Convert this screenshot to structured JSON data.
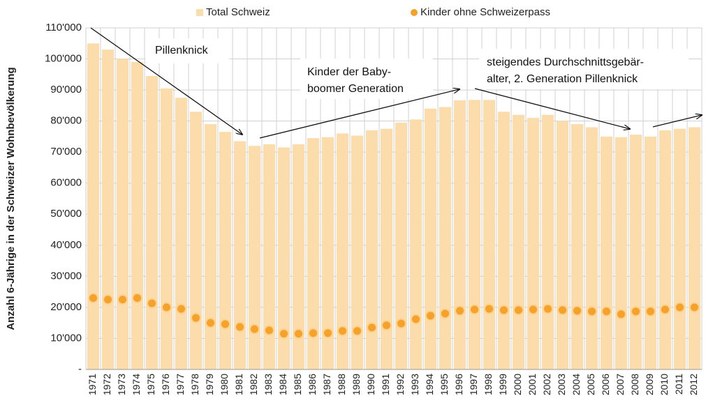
{
  "chart_data": {
    "type": "bar",
    "y_label": "Anzahl 6-Jährige in der Schweizer Wohnbevölkerung",
    "categories": [
      "1971",
      "1972",
      "1973",
      "1974",
      "1975",
      "1976",
      "1977",
      "1978",
      "1979",
      "1980",
      "1981",
      "1982",
      "1983",
      "1984",
      "1985",
      "1986",
      "1987",
      "1988",
      "1989",
      "1990",
      "1991",
      "1992",
      "1993",
      "1994",
      "1995",
      "1996",
      "1997",
      "1998",
      "1999",
      "2000",
      "2001",
      "2002",
      "2003",
      "2004",
      "2005",
      "2006",
      "2007",
      "2008",
      "2009",
      "2010",
      "2011",
      "2012"
    ],
    "series": [
      {
        "name": "Total Schweiz",
        "type": "bar",
        "color": "#fcdcab",
        "values": [
          105000,
          103000,
          100000,
          99000,
          94500,
          90500,
          87500,
          83000,
          79000,
          76500,
          73500,
          72000,
          72500,
          71500,
          72500,
          74500,
          74800,
          76000,
          75300,
          77000,
          77500,
          79500,
          80500,
          84000,
          84500,
          86700,
          86800,
          86800,
          83000,
          82000,
          81000,
          82000,
          80000,
          79000,
          78000,
          75000,
          74800,
          75600,
          75000,
          77000,
          77500,
          78000
        ]
      },
      {
        "name": "Kinder ohne Schweizerpass",
        "type": "scatter",
        "color": "#f5a12a",
        "values": [
          23000,
          22500,
          22500,
          23000,
          21300,
          20000,
          19500,
          16600,
          15000,
          14600,
          13700,
          13000,
          12600,
          11500,
          11500,
          11700,
          11700,
          12400,
          12400,
          13500,
          14200,
          14800,
          16200,
          17300,
          18000,
          18900,
          19300,
          19500,
          19100,
          19100,
          19300,
          19500,
          19100,
          18900,
          18700,
          18700,
          17800,
          18700,
          18700,
          19300,
          20000,
          20000
        ]
      }
    ],
    "ylim": [
      0,
      110000
    ],
    "yticks": [
      {
        "value": 0,
        "label": "-"
      },
      {
        "value": 10000,
        "label": "10'000"
      },
      {
        "value": 20000,
        "label": "20'000"
      },
      {
        "value": 30000,
        "label": "30'000"
      },
      {
        "value": 40000,
        "label": "40'000"
      },
      {
        "value": 50000,
        "label": "50'000"
      },
      {
        "value": 60000,
        "label": "60'000"
      },
      {
        "value": 70000,
        "label": "70'000"
      },
      {
        "value": 80000,
        "label": "80'000"
      },
      {
        "value": 90000,
        "label": "90'000"
      },
      {
        "value": 100000,
        "label": "100'000"
      },
      {
        "value": 110000,
        "label": "110'000"
      }
    ],
    "grid": true,
    "legend": "top",
    "annotations": [
      {
        "lines": [
          "Pillenknick"
        ]
      },
      {
        "lines": [
          "Kinder der Baby-",
          "boomer Generation"
        ]
      },
      {
        "lines": [
          "steigendes Durchschnittsgebär-",
          "alter, 2. Generation Pillenknick"
        ]
      }
    ]
  }
}
